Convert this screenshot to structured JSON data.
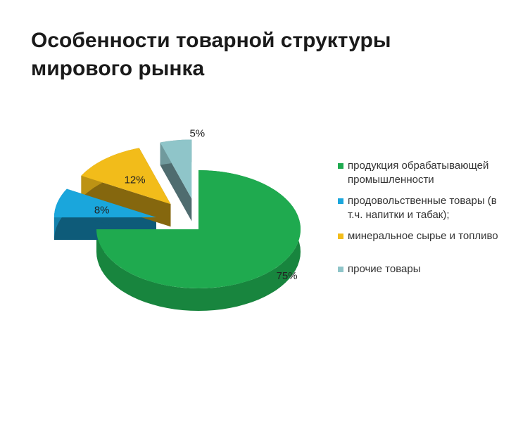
{
  "page": {
    "title_line1": "Особенности товарной структуры",
    "title_line2": "мирового рынка"
  },
  "chart_data": {
    "type": "pie",
    "style": "3d-exploded",
    "title": "",
    "legend_position": "right",
    "series": [
      {
        "categories": [
          "продукция обрабатывающей промышленности",
          "продовольственные товары (в т.ч. напитки и табак);",
          "минеральное сырье и топливо",
          "прочие товары"
        ],
        "values": [
          75,
          8,
          12,
          5
        ],
        "labels": [
          "75%",
          "8%",
          "12%",
          "5%"
        ],
        "colors": [
          "#1faa4f",
          "#1aa6dc",
          "#f2bc1a",
          "#8fc5c9"
        ]
      }
    ]
  }
}
